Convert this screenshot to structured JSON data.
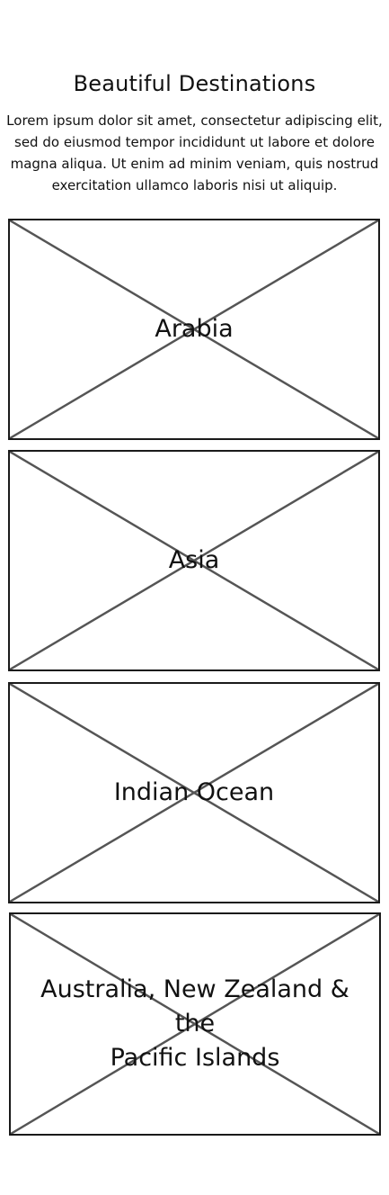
{
  "page": {
    "heading": "Beautiful Destinations",
    "intro": "Lorem ipsum dolor sit amet, consectetur adipiscing elit, sed do eiusmod tempor incididunt ut labore et dolore magna aliqua. Ut enim ad minim veniam, quis nostrud exercitation ullamco laboris nisi ut aliquip."
  },
  "destinations": [
    {
      "title": "Arabia"
    },
    {
      "title": "Asia"
    },
    {
      "title": "Indian Ocean"
    },
    {
      "title": "Australia, New Zealand &\nthe\nPacific Islands"
    }
  ],
  "colors": {
    "border": "#1a1a1a",
    "cross": "#555555",
    "text": "#111111"
  }
}
